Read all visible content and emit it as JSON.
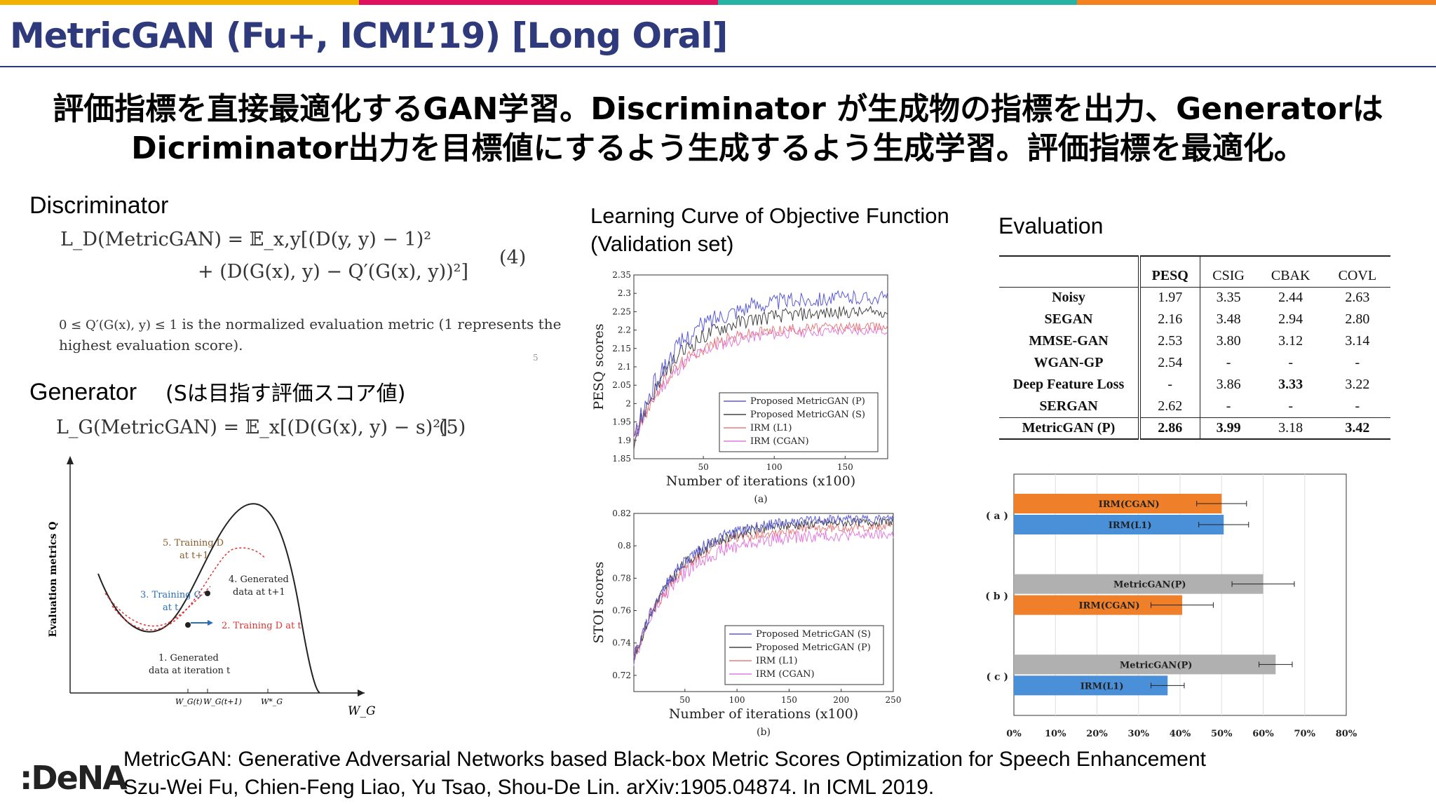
{
  "colors": {
    "topbar": [
      "#f3b200",
      "#e0115f",
      "#29b3a5",
      "#f58220"
    ],
    "title": "#2f3a7c",
    "series_metricgan_p": "#5b5bd6",
    "series_metricgan_s": "#444444",
    "series_irm_l1": "#e87a7a",
    "series_irm_cgan": "#e07be0",
    "bar_orange": "#f07f2a",
    "bar_blue": "#4a90d9",
    "bar_gray": "#b0b0b0"
  },
  "title": "MetricGAN (Fu+, ICML’19) [Long Oral]",
  "headline": {
    "line1": "評価指標を直接最適化するGAN学習。Discriminator が生成物の指標を出力、Generatorは",
    "line2": "Dicriminator出力を目標値にするよう生成するよう生成学習。評価指標を最適化。"
  },
  "discriminator": {
    "heading": "Discriminator",
    "eq_line1": "L_D(MetricGAN) = 𝔼_x,y[(D(y, y) − 1)²",
    "eq_line2": "+ (D(G(x), y) − Q′(G(x), y))²]",
    "eq_number": "(4)",
    "note_math": "0 ≤ Q′(G(x), y) ≤ 1",
    "note_text": " is the normalized evaluation metric (1 represents the",
    "note_line2": "highest evaluation score).",
    "page_mark": "5"
  },
  "generator": {
    "heading": "Generator",
    "aside": "(Sは目指す評価スコア値)",
    "equation": "L_G(MetricGAN) = 𝔼_x[(D(G(x), y) − s)²]",
    "eq_number": "(5)"
  },
  "diagram": {
    "ylabel": "Evaluation metrics Q",
    "xlabel": "W_G",
    "labels": {
      "train_d_next": "5. Training D",
      "train_d_next_2": "at t+1",
      "generated_next": "4. Generated",
      "generated_next_2": "data at t+1",
      "train_g": "3. Training G",
      "train_g_2": "at t",
      "train_d": "2. Training D at t",
      "generated": "1. Generated",
      "generated_2": "data at iteration t",
      "tick1": "W_G(t)",
      "tick2": "W_G(t+1)",
      "tick3": "W*_G"
    }
  },
  "learning_curve": {
    "heading1": "Learning Curve of Objective Function",
    "heading2": "(Validation set)"
  },
  "evaluation": {
    "heading": "Evaluation",
    "columns": [
      "",
      "PESQ",
      "CSIG",
      "CBAK",
      "COVL"
    ],
    "rows": [
      {
        "method": "Noisy",
        "pesq": "1.97",
        "csig": "3.35",
        "cbak": "2.44",
        "covl": "2.63"
      },
      {
        "method": "SEGAN",
        "pesq": "2.16",
        "csig": "3.48",
        "cbak": "2.94",
        "covl": "2.80"
      },
      {
        "method": "MMSE-GAN",
        "pesq": "2.53",
        "csig": "3.80",
        "cbak": "3.12",
        "covl": "3.14"
      },
      {
        "method": "WGAN-GP",
        "pesq": "2.54",
        "csig": "-",
        "cbak": "-",
        "covl": "-"
      },
      {
        "method": "Deep Feature Loss",
        "pesq": "-",
        "csig": "3.86",
        "cbak": "3.33",
        "covl": "3.22"
      },
      {
        "method": "SERGAN",
        "pesq": "2.62",
        "csig": "-",
        "cbak": "-",
        "covl": "-"
      },
      {
        "method": "MetricGAN (P)",
        "pesq": "2.86",
        "csig": "3.99",
        "cbak": "3.18",
        "covl": "3.42"
      }
    ]
  },
  "chart_data": [
    {
      "type": "line",
      "title": "",
      "xlabel": "Number of iterations (x100)",
      "ylabel": "PESQ scores",
      "caption": "(a)",
      "xlim": [
        1,
        180
      ],
      "ylim": [
        1.85,
        2.35
      ],
      "xticks": [
        "50",
        "100",
        "150"
      ],
      "yticks": [
        "1.85",
        "1.9",
        "1.95",
        "2",
        "2.05",
        "2.1",
        "2.15",
        "2.2",
        "2.25",
        "2.3",
        "2.35"
      ],
      "legend_position": "bottom-right",
      "series": [
        {
          "name": "Proposed MetricGAN (P)",
          "color": "#5b5bd6",
          "start": 1.9,
          "end": 2.29,
          "noise": 0.03
        },
        {
          "name": "Proposed MetricGAN (S)",
          "color": "#444444",
          "start": 1.9,
          "end": 2.25,
          "noise": 0.025
        },
        {
          "name": "IRM (L1)",
          "color": "#e87a7a",
          "start": 1.9,
          "end": 2.21,
          "noise": 0.02
        },
        {
          "name": "IRM (CGAN)",
          "color": "#e07be0",
          "start": 1.9,
          "end": 2.2,
          "noise": 0.02
        }
      ]
    },
    {
      "type": "line",
      "title": "",
      "xlabel": "Number of iterations (x100)",
      "ylabel": "STOI scores",
      "caption": "(b)",
      "xlim": [
        1,
        250
      ],
      "ylim": [
        0.71,
        0.82
      ],
      "xticks": [
        "50",
        "100",
        "150",
        "200",
        "250"
      ],
      "yticks": [
        "0.72",
        "0.74",
        "0.76",
        "0.78",
        "0.8",
        "0.82"
      ],
      "legend_position": "bottom-right",
      "series": [
        {
          "name": "Proposed MetricGAN (S)",
          "color": "#5b5bd6",
          "start": 0.73,
          "end": 0.817,
          "noise": 0.004
        },
        {
          "name": "Proposed MetricGAN (P)",
          "color": "#444444",
          "start": 0.73,
          "end": 0.815,
          "noise": 0.004
        },
        {
          "name": "IRM (L1)",
          "color": "#e87a7a",
          "start": 0.73,
          "end": 0.812,
          "noise": 0.004
        },
        {
          "name": "IRM (CGAN)",
          "color": "#e07be0",
          "start": 0.73,
          "end": 0.807,
          "noise": 0.005
        }
      ]
    },
    {
      "type": "bar",
      "orientation": "horizontal",
      "xlim": [
        0,
        80
      ],
      "xticks": [
        "0%",
        "10%",
        "20%",
        "30%",
        "40%",
        "50%",
        "60%",
        "70%",
        "80%"
      ],
      "groups": [
        {
          "label": "( a )",
          "bars": [
            {
              "name": "IRM(CGAN)",
              "value": 50,
              "err": 6,
              "color": "#f07f2a"
            },
            {
              "name": "IRM(L1)",
              "value": 50.5,
              "err": 6,
              "color": "#4a90d9"
            }
          ]
        },
        {
          "label": "( b )",
          "bars": [
            {
              "name": "MetricGAN(P)",
              "value": 60,
              "err": 7.5,
              "color": "#b0b0b0"
            },
            {
              "name": "IRM(CGAN)",
              "value": 40.5,
              "err": 7.5,
              "color": "#f07f2a"
            }
          ]
        },
        {
          "label": "( c )",
          "bars": [
            {
              "name": "MetricGAN(P)",
              "value": 63,
              "err": 4,
              "color": "#b0b0b0"
            },
            {
              "name": "IRM(L1)",
              "value": 37,
              "err": 4,
              "color": "#4a90d9"
            }
          ]
        }
      ]
    }
  ],
  "citation": {
    "line1": "MetricGAN: Generative Adversarial Networks based Black-box Metric Scores Optimization for Speech Enhancement",
    "line2": "Szu-Wei Fu, Chien-Feng Liao, Yu Tsao, Shou-De Lin. arXiv:1905.04874. In ICML 2019."
  },
  "logo": ":DeNA"
}
